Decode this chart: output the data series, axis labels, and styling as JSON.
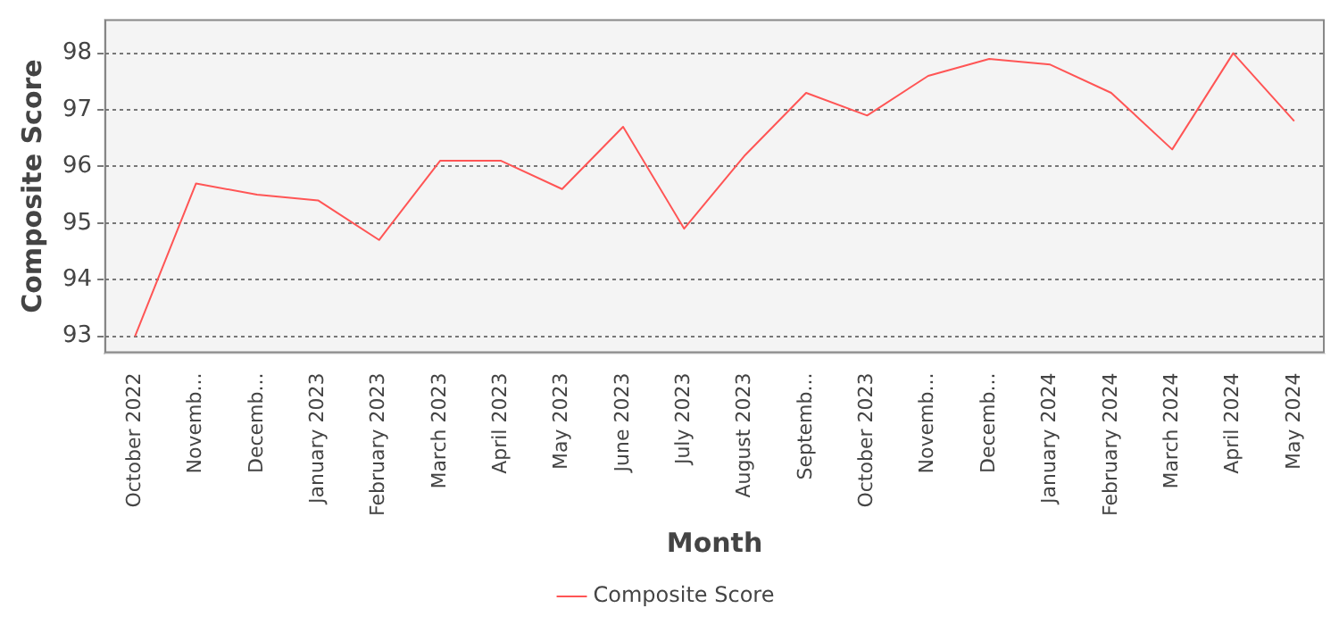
{
  "chart_data": {
    "type": "line",
    "xlabel": "Month",
    "ylabel": "Composite Score",
    "categories": [
      "October 2022",
      "Novemb...",
      "Decemb...",
      "January 2023",
      "February 2023",
      "March 2023",
      "April 2023",
      "May 2023",
      "June 2023",
      "July 2023",
      "August 2023",
      "Septemb...",
      "October 2023",
      "Novemb...",
      "Decemb...",
      "January 2024",
      "February 2024",
      "March 2024",
      "April 2024",
      "May 2024"
    ],
    "series": [
      {
        "name": "Composite Score",
        "color": "#ff5555",
        "values": [
          93.0,
          95.7,
          95.5,
          95.4,
          94.7,
          96.1,
          96.1,
          95.6,
          96.7,
          94.9,
          96.2,
          97.3,
          96.9,
          97.6,
          97.9,
          97.8,
          97.3,
          96.3,
          98.0,
          96.8
        ]
      }
    ],
    "ylim": [
      92.7,
      98.6
    ],
    "yticks": [
      93,
      94,
      95,
      96,
      97,
      98
    ],
    "grid": "y",
    "legend": "bottom",
    "marker": "none",
    "line_style": "solid"
  }
}
